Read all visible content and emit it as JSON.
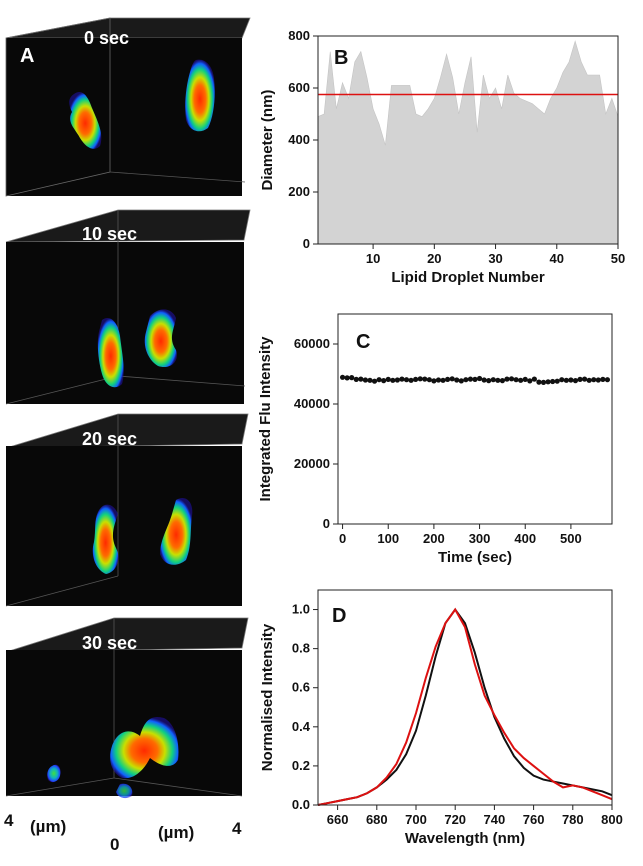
{
  "figure": {
    "panel_a": {
      "label": "A",
      "timepoints": [
        "0 sec",
        "10 sec",
        "20 sec",
        "30 sec"
      ],
      "axis_left_tick": "4",
      "axis_left_unit": "(µm)",
      "axis_mid_tick": "0",
      "axis_right_unit": "(µm)",
      "axis_right_tick": "4"
    }
  },
  "chart_data": [
    {
      "id": "B",
      "type": "area",
      "label": "B",
      "xlabel": "Lipid Droplet Number",
      "ylabel": "Diameter (nm)",
      "xlim": [
        1,
        50
      ],
      "ylim": [
        0,
        800
      ],
      "xticks": [
        10,
        20,
        30,
        40,
        50
      ],
      "yticks": [
        0,
        200,
        400,
        600,
        800
      ],
      "x": [
        1,
        2,
        3,
        4,
        5,
        6,
        7,
        8,
        9,
        10,
        11,
        12,
        13,
        14,
        15,
        16,
        17,
        18,
        19,
        20,
        21,
        22,
        23,
        24,
        25,
        26,
        27,
        28,
        29,
        30,
        31,
        32,
        33,
        34,
        35,
        36,
        37,
        38,
        39,
        40,
        41,
        42,
        43,
        44,
        45,
        46,
        47,
        48,
        49,
        50
      ],
      "values": [
        490,
        500,
        740,
        520,
        620,
        560,
        700,
        740,
        640,
        520,
        460,
        380,
        610,
        610,
        610,
        610,
        500,
        490,
        520,
        560,
        640,
        730,
        640,
        500,
        620,
        720,
        430,
        650,
        560,
        600,
        520,
        650,
        580,
        560,
        550,
        540,
        520,
        500,
        560,
        600,
        660,
        700,
        780,
        700,
        650,
        650,
        650,
        500,
        560,
        490
      ],
      "mean_line": 575,
      "fill_color": "#d3d3d3",
      "mean_color": "#dd1111"
    },
    {
      "id": "C",
      "type": "scatter",
      "label": "C",
      "xlabel": "Time (sec)",
      "ylabel": "Integrated Flu Intensity",
      "xlim": [
        -10,
        590
      ],
      "ylim": [
        0,
        70000
      ],
      "xticks": [
        0,
        100,
        200,
        300,
        400,
        500
      ],
      "yticks": [
        0,
        20000,
        40000,
        60000
      ],
      "x": [
        0,
        10,
        20,
        30,
        40,
        50,
        60,
        70,
        80,
        90,
        100,
        110,
        120,
        130,
        140,
        150,
        160,
        170,
        180,
        190,
        200,
        210,
        220,
        230,
        240,
        250,
        260,
        270,
        280,
        290,
        300,
        310,
        320,
        330,
        340,
        350,
        360,
        370,
        380,
        390,
        400,
        410,
        420,
        430,
        440,
        450,
        460,
        470,
        480,
        490,
        500,
        510,
        520,
        530,
        540,
        550,
        560,
        570,
        580
      ],
      "values": [
        48900,
        48700,
        48800,
        48200,
        48300,
        48000,
        47900,
        47600,
        48100,
        47800,
        48200,
        47900,
        48000,
        48300,
        48100,
        47900,
        48200,
        48400,
        48300,
        48100,
        47700,
        48000,
        47900,
        48200,
        48400,
        48000,
        47700,
        48100,
        48300,
        48200,
        48500,
        48000,
        47800,
        48100,
        47900,
        47800,
        48300,
        48400,
        48100,
        47900,
        48200,
        47700,
        48300,
        47300,
        47200,
        47400,
        47500,
        47600,
        48100,
        47900,
        48000,
        47800,
        48200,
        48300,
        47900,
        48100,
        48000,
        48200,
        48100
      ],
      "marker_color": "#111111"
    },
    {
      "id": "D",
      "type": "line",
      "label": "D",
      "xlabel": "Wavelength (nm)",
      "ylabel": "Normalised Intensity",
      "xlim": [
        650,
        800
      ],
      "ylim": [
        0,
        1.1
      ],
      "xticks": [
        660,
        680,
        700,
        720,
        740,
        760,
        780,
        800
      ],
      "yticks": [
        0.0,
        0.2,
        0.4,
        0.6,
        0.8,
        1.0
      ],
      "ytick_labels": [
        "0.0",
        "0.2",
        "0.4",
        "0.6",
        "0.8",
        "1.0"
      ],
      "series": [
        {
          "name": "black",
          "color": "#111111",
          "x": [
            650,
            655,
            660,
            665,
            670,
            675,
            680,
            685,
            690,
            695,
            700,
            705,
            710,
            715,
            720,
            725,
            730,
            735,
            740,
            745,
            750,
            755,
            760,
            765,
            770,
            775,
            780,
            785,
            790,
            795,
            800
          ],
          "values": [
            0.0,
            0.01,
            0.02,
            0.03,
            0.04,
            0.06,
            0.09,
            0.13,
            0.18,
            0.26,
            0.38,
            0.56,
            0.76,
            0.93,
            1.0,
            0.93,
            0.78,
            0.6,
            0.45,
            0.34,
            0.25,
            0.19,
            0.15,
            0.13,
            0.12,
            0.11,
            0.1,
            0.09,
            0.08,
            0.07,
            0.05
          ]
        },
        {
          "name": "red",
          "color": "#dd1111",
          "x": [
            650,
            655,
            660,
            665,
            670,
            675,
            680,
            685,
            690,
            695,
            700,
            705,
            710,
            715,
            720,
            725,
            730,
            735,
            740,
            745,
            750,
            755,
            760,
            765,
            770,
            775,
            780,
            785,
            790,
            795,
            800
          ],
          "values": [
            0.0,
            0.01,
            0.02,
            0.03,
            0.04,
            0.06,
            0.09,
            0.14,
            0.21,
            0.32,
            0.47,
            0.65,
            0.81,
            0.93,
            1.0,
            0.91,
            0.72,
            0.56,
            0.46,
            0.37,
            0.29,
            0.24,
            0.2,
            0.16,
            0.12,
            0.09,
            0.1,
            0.09,
            0.07,
            0.05,
            0.03
          ]
        }
      ]
    }
  ]
}
